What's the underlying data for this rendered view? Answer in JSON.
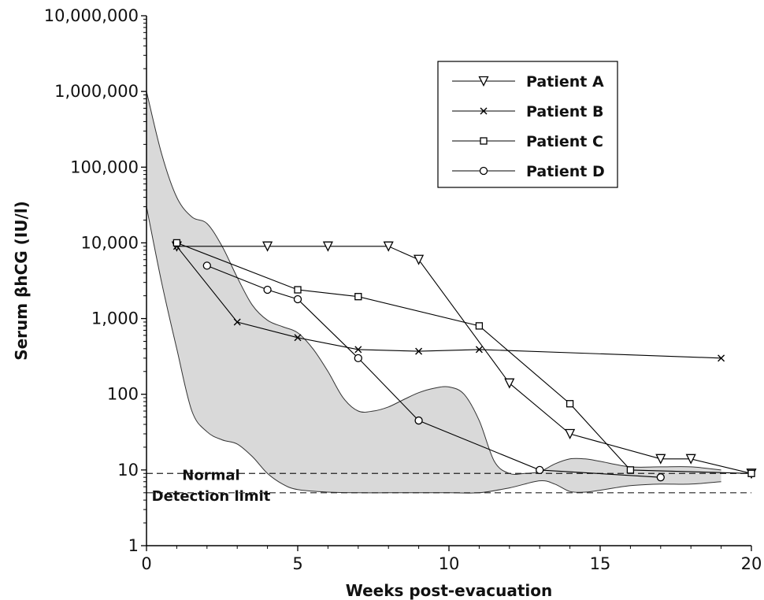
{
  "chart_data": {
    "type": "line",
    "title": "",
    "xlabel": "Weeks post-evacuation",
    "ylabel": "Serum βhCG (IU/l)",
    "xlim": [
      0,
      20
    ],
    "ylim": [
      1,
      10000000
    ],
    "yscale": "log",
    "grid": false,
    "legend_position": "top-right",
    "x_ticks": [
      0,
      5,
      10,
      15,
      20
    ],
    "x_tick_labels": [
      "0",
      "5",
      "10",
      "15",
      "20"
    ],
    "y_ticks": [
      1,
      10,
      100,
      1000,
      10000,
      100000,
      1000000,
      10000000
    ],
    "y_tick_labels": [
      "1",
      "10",
      "100",
      "1,000",
      "10,000",
      "100,000",
      "1,000,000",
      "10,000,000"
    ],
    "series": [
      {
        "name": "Patient A",
        "marker": "triangle-down",
        "x": [
          1,
          4,
          6,
          8,
          9,
          12,
          14,
          17,
          18,
          20
        ],
        "y": [
          9000,
          9000,
          9000,
          9000,
          6000,
          140,
          30,
          14,
          14,
          9
        ]
      },
      {
        "name": "Patient B",
        "marker": "x",
        "x": [
          1,
          3,
          5,
          7,
          9,
          11,
          19
        ],
        "y": [
          9000,
          900,
          560,
          390,
          370,
          390,
          300
        ]
      },
      {
        "name": "Patient C",
        "marker": "square",
        "x": [
          1,
          5,
          7,
          11,
          14,
          16,
          20
        ],
        "y": [
          10000,
          2400,
          1950,
          800,
          75,
          10,
          9
        ]
      },
      {
        "name": "Patient D",
        "marker": "circle",
        "x": [
          2,
          4,
          5,
          7,
          9,
          13,
          17
        ],
        "y": [
          5000,
          2400,
          1800,
          300,
          45,
          10,
          8
        ]
      }
    ],
    "reference_range_band": {
      "upper": {
        "x": [
          0,
          0.5,
          1,
          1.5,
          2,
          2.5,
          3,
          3.5,
          4,
          4.5,
          5,
          5.5,
          6,
          6.5,
          7,
          7.5,
          8,
          8.5,
          9,
          9.5,
          10,
          10.5,
          11,
          11.5,
          12,
          12.5,
          13,
          13.5,
          14,
          14.5,
          15,
          16,
          17,
          18,
          19
        ],
        "y": [
          1000000,
          150000,
          40000,
          22000,
          18000,
          9000,
          3500,
          1500,
          950,
          780,
          650,
          400,
          200,
          90,
          60,
          60,
          68,
          85,
          105,
          120,
          125,
          100,
          45,
          13,
          9,
          9,
          9.5,
          12,
          14,
          14,
          13,
          11,
          11,
          11,
          10
        ]
      },
      "lower": {
        "x": [
          0,
          0.5,
          1,
          1.5,
          2,
          2.5,
          3,
          3.5,
          4,
          4.5,
          5,
          6,
          7,
          8,
          9,
          10,
          11,
          12,
          13,
          13.5,
          14,
          14.5,
          15,
          16,
          17,
          18,
          19
        ],
        "y": [
          30000,
          3000,
          400,
          60,
          32,
          25,
          22,
          15,
          9,
          6.5,
          5.5,
          5.1,
          5,
          5,
          5,
          5,
          5,
          5.8,
          7.2,
          6.5,
          5.2,
          5.1,
          5.4,
          6.2,
          6.5,
          6.5,
          7
        ]
      }
    },
    "reference_lines": [
      {
        "label": "Normal",
        "y": 9
      },
      {
        "label": "Detection limit",
        "y": 5
      }
    ]
  }
}
